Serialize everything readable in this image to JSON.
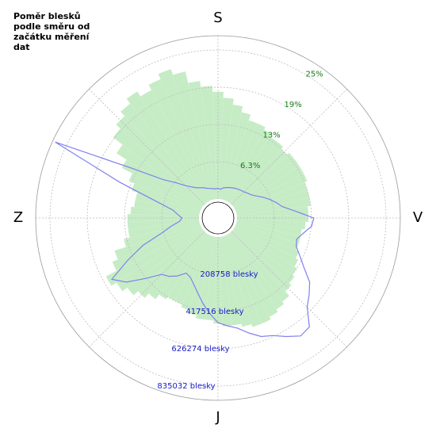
{
  "chart_data": {
    "type": "polar",
    "title": "Poměr blesků podle směru od začátku měření dat",
    "directions": [
      "S",
      "V",
      "J",
      "Z"
    ],
    "rlim": [
      0,
      27.4
    ],
    "rticks": [
      {
        "value": 6.25,
        "label": "6.3%"
      },
      {
        "value": 12.5,
        "label": "13%"
      },
      {
        "value": 18.75,
        "label": "19%"
      },
      {
        "value": 25,
        "label": "25%"
      }
    ],
    "r2lim": [
      0,
      915000
    ],
    "r2ticks": [
      {
        "value": 208758,
        "label": "208758 blesky"
      },
      {
        "value": 417516,
        "label": "417516 blesky"
      },
      {
        "value": 626274,
        "label": "626274 blesky"
      },
      {
        "value": 835032,
        "label": "835032 blesky"
      }
    ],
    "series": [
      {
        "color": "#c6ecc6",
        "style": "bars",
        "values": [
          18,
          17,
          16,
          15,
          14,
          14,
          13.5,
          13,
          13,
          12.5,
          13,
          13,
          13,
          13,
          12.5,
          12.5,
          12.5,
          12,
          12,
          11.5,
          11,
          11,
          11,
          11.5,
          12,
          12.5,
          13,
          13.5,
          14.5,
          15,
          15.5,
          16,
          16,
          15.5,
          15,
          15,
          14.5,
          14,
          14,
          13.5,
          13,
          12.5,
          12.5,
          13,
          14,
          15,
          16,
          17,
          18,
          16,
          15,
          13,
          12,
          12,
          12,
          11.5,
          11,
          11,
          12,
          13,
          15,
          17,
          19,
          20,
          21,
          22,
          21,
          22,
          23,
          22,
          20,
          19
        ]
      },
      {
        "color": "#8080f0",
        "style": "line",
        "axis": "r2",
        "values": [
          60000,
          55000,
          65000,
          70000,
          75000,
          80000,
          85000,
          90000,
          95000,
          100000,
          110000,
          120000,
          140000,
          170000,
          200000,
          230000,
          260000,
          330000,
          430000,
          420000,
          380000,
          350000,
          360000,
          400000,
          450000,
          520000,
          560000,
          600000,
          690000,
          700000,
          660000,
          620000,
          600000,
          560000,
          520000,
          500000,
          480000,
          430000,
          380000,
          330000,
          290000,
          260000,
          250000,
          290000,
          320000,
          340000,
          420000,
          520000,
          580000,
          450000,
          340000,
          220000,
          160000,
          110000,
          95000,
          120000,
          150000,
          250000,
          480000,
          900000,
          450000,
          270000,
          200000,
          150000,
          120000,
          100000,
          90000,
          80000,
          70000,
          65000,
          60000,
          58000
        ]
      }
    ]
  }
}
